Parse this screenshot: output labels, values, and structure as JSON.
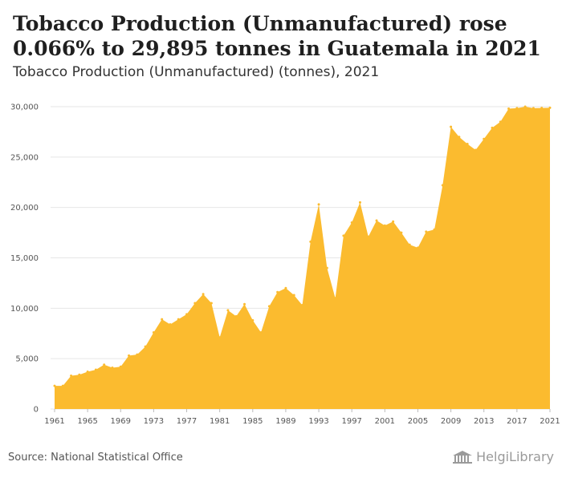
{
  "header": {
    "title": "Tobacco Production (Unmanufactured) rose 0.066% to 29,895 tonnes in Guatemala in 2021",
    "subtitle": "Tobacco Production (Unmanufactured) (tonnes), 2021"
  },
  "footer": {
    "source": "Source: National Statistical Office",
    "brand": "HelgiLibrary"
  },
  "colors": {
    "fill": "#fbbb2f",
    "grid": "#e6e6e6"
  },
  "chart_data": {
    "type": "area",
    "title": "Tobacco Production (Unmanufactured) (tonnes), 2021",
    "xlabel": "",
    "ylabel": "",
    "ylim": [
      0,
      30000
    ],
    "yticks": [
      0,
      5000,
      10000,
      15000,
      20000,
      25000,
      30000
    ],
    "ytick_labels": [
      "0",
      "5,000",
      "10,000",
      "15,000",
      "20,000",
      "25,000",
      "30,000"
    ],
    "xticks": [
      1961,
      1965,
      1969,
      1973,
      1977,
      1981,
      1985,
      1989,
      1993,
      1997,
      2001,
      2005,
      2009,
      2013,
      2017,
      2021
    ],
    "grid": true,
    "x": [
      1961,
      1962,
      1963,
      1964,
      1965,
      1966,
      1967,
      1968,
      1969,
      1970,
      1971,
      1972,
      1973,
      1974,
      1975,
      1976,
      1977,
      1978,
      1979,
      1980,
      1981,
      1982,
      1983,
      1984,
      1985,
      1986,
      1987,
      1988,
      1989,
      1990,
      1991,
      1992,
      1993,
      1994,
      1995,
      1996,
      1997,
      1998,
      1999,
      2000,
      2001,
      2002,
      2003,
      2004,
      2005,
      2006,
      2007,
      2008,
      2009,
      2010,
      2011,
      2012,
      2013,
      2014,
      2015,
      2016,
      2017,
      2018,
      2019,
      2020,
      2021
    ],
    "series": [
      {
        "values": [
          2300,
          2300,
          3300,
          3400,
          3700,
          3900,
          4400,
          4100,
          4200,
          5300,
          5400,
          6200,
          7600,
          8900,
          8400,
          8900,
          9400,
          10500,
          11400,
          10500,
          7100,
          9800,
          9200,
          10400,
          8800,
          7600,
          10200,
          11600,
          12000,
          11300,
          10300,
          16600,
          20300,
          14000,
          11000,
          17200,
          18500,
          20500,
          17100,
          18700,
          18200,
          18600,
          17500,
          16300,
          16000,
          17600,
          17800,
          22200,
          28000,
          27000,
          26300,
          25700,
          26800,
          27900,
          28500,
          29800,
          29850,
          30000,
          29850,
          29875,
          29895
        ]
      }
    ]
  }
}
